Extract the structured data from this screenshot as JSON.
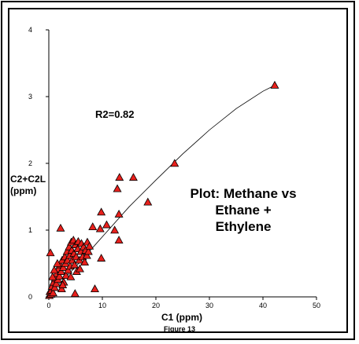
{
  "colors": {
    "marker_fill": "#e8201c",
    "marker_stroke": "#000000",
    "axis": "#000000",
    "fit_line": "#000000"
  },
  "chart_data": {
    "type": "scatter",
    "title": "",
    "annotation": "Plot: Methane vs\nEthane +\nEthylene",
    "r2_label": "R2=0.82",
    "xlabel": "C1 (ppm)",
    "ylabel": "C2+C2L\n(ppm)",
    "caption": "Figure 13",
    "xlim": [
      0,
      50
    ],
    "ylim": [
      0,
      4
    ],
    "x_ticks": [
      0,
      10,
      20,
      30,
      40,
      50
    ],
    "y_ticks": [
      0,
      1,
      2,
      3,
      4
    ],
    "grid": false,
    "marker": "triangle",
    "points": [
      [
        42.2,
        3.17
      ],
      [
        23.5,
        2.0
      ],
      [
        18.5,
        1.42
      ],
      [
        15.8,
        1.79
      ],
      [
        13.2,
        1.79
      ],
      [
        12.8,
        1.62
      ],
      [
        13.1,
        1.24
      ],
      [
        13.1,
        0.85
      ],
      [
        12.3,
        1.0
      ],
      [
        10.8,
        1.08
      ],
      [
        9.8,
        1.27
      ],
      [
        9.6,
        1.02
      ],
      [
        8.2,
        1.05
      ],
      [
        9.8,
        0.58
      ],
      [
        8.6,
        0.12
      ],
      [
        4.9,
        0.05
      ],
      [
        2.2,
        1.03
      ],
      [
        0.3,
        0.66
      ],
      [
        0.1,
        0.02
      ],
      [
        0.2,
        0.08
      ],
      [
        0.4,
        0.04
      ],
      [
        0.5,
        0.1
      ],
      [
        0.6,
        0.16
      ],
      [
        0.8,
        0.06
      ],
      [
        0.9,
        0.22
      ],
      [
        1.1,
        0.14
      ],
      [
        1.2,
        0.28
      ],
      [
        1.4,
        0.2
      ],
      [
        1.5,
        0.35
      ],
      [
        1.7,
        0.26
      ],
      [
        1.8,
        0.42
      ],
      [
        2.0,
        0.31
      ],
      [
        2.1,
        0.48
      ],
      [
        2.3,
        0.38
      ],
      [
        2.4,
        0.12
      ],
      [
        2.5,
        0.55
      ],
      [
        2.7,
        0.44
      ],
      [
        2.8,
        0.22
      ],
      [
        3.0,
        0.6
      ],
      [
        3.1,
        0.5
      ],
      [
        3.2,
        0.32
      ],
      [
        3.4,
        0.68
      ],
      [
        3.5,
        0.55
      ],
      [
        3.6,
        0.4
      ],
      [
        3.8,
        0.75
      ],
      [
        3.9,
        0.62
      ],
      [
        4.0,
        0.46
      ],
      [
        4.1,
        0.3
      ],
      [
        4.2,
        0.82
      ],
      [
        4.3,
        0.7
      ],
      [
        4.4,
        0.55
      ],
      [
        4.6,
        0.85
      ],
      [
        4.7,
        0.65
      ],
      [
        4.8,
        0.48
      ],
      [
        5.0,
        0.78
      ],
      [
        5.1,
        0.6
      ],
      [
        5.2,
        0.38
      ],
      [
        5.4,
        0.72
      ],
      [
        5.5,
        0.83
      ],
      [
        5.7,
        0.55
      ],
      [
        5.8,
        0.42
      ],
      [
        6.0,
        0.68
      ],
      [
        6.1,
        0.8
      ],
      [
        6.3,
        0.6
      ],
      [
        6.5,
        0.75
      ],
      [
        6.7,
        0.52
      ],
      [
        6.9,
        0.7
      ],
      [
        7.1,
        0.62
      ],
      [
        7.2,
        0.82
      ],
      [
        7.4,
        0.68
      ],
      [
        7.6,
        0.76
      ],
      [
        1.0,
        0.4
      ],
      [
        1.6,
        0.5
      ],
      [
        0.7,
        0.3
      ],
      [
        2.6,
        0.18
      ]
    ],
    "fit_curve": {
      "label": "R2=0.82",
      "x": [
        0,
        2,
        5,
        10,
        15,
        20,
        25,
        30,
        35,
        40,
        42.2
      ],
      "y": [
        0,
        0.2,
        0.45,
        0.9,
        1.35,
        1.75,
        2.14,
        2.5,
        2.82,
        3.08,
        3.17
      ]
    }
  }
}
